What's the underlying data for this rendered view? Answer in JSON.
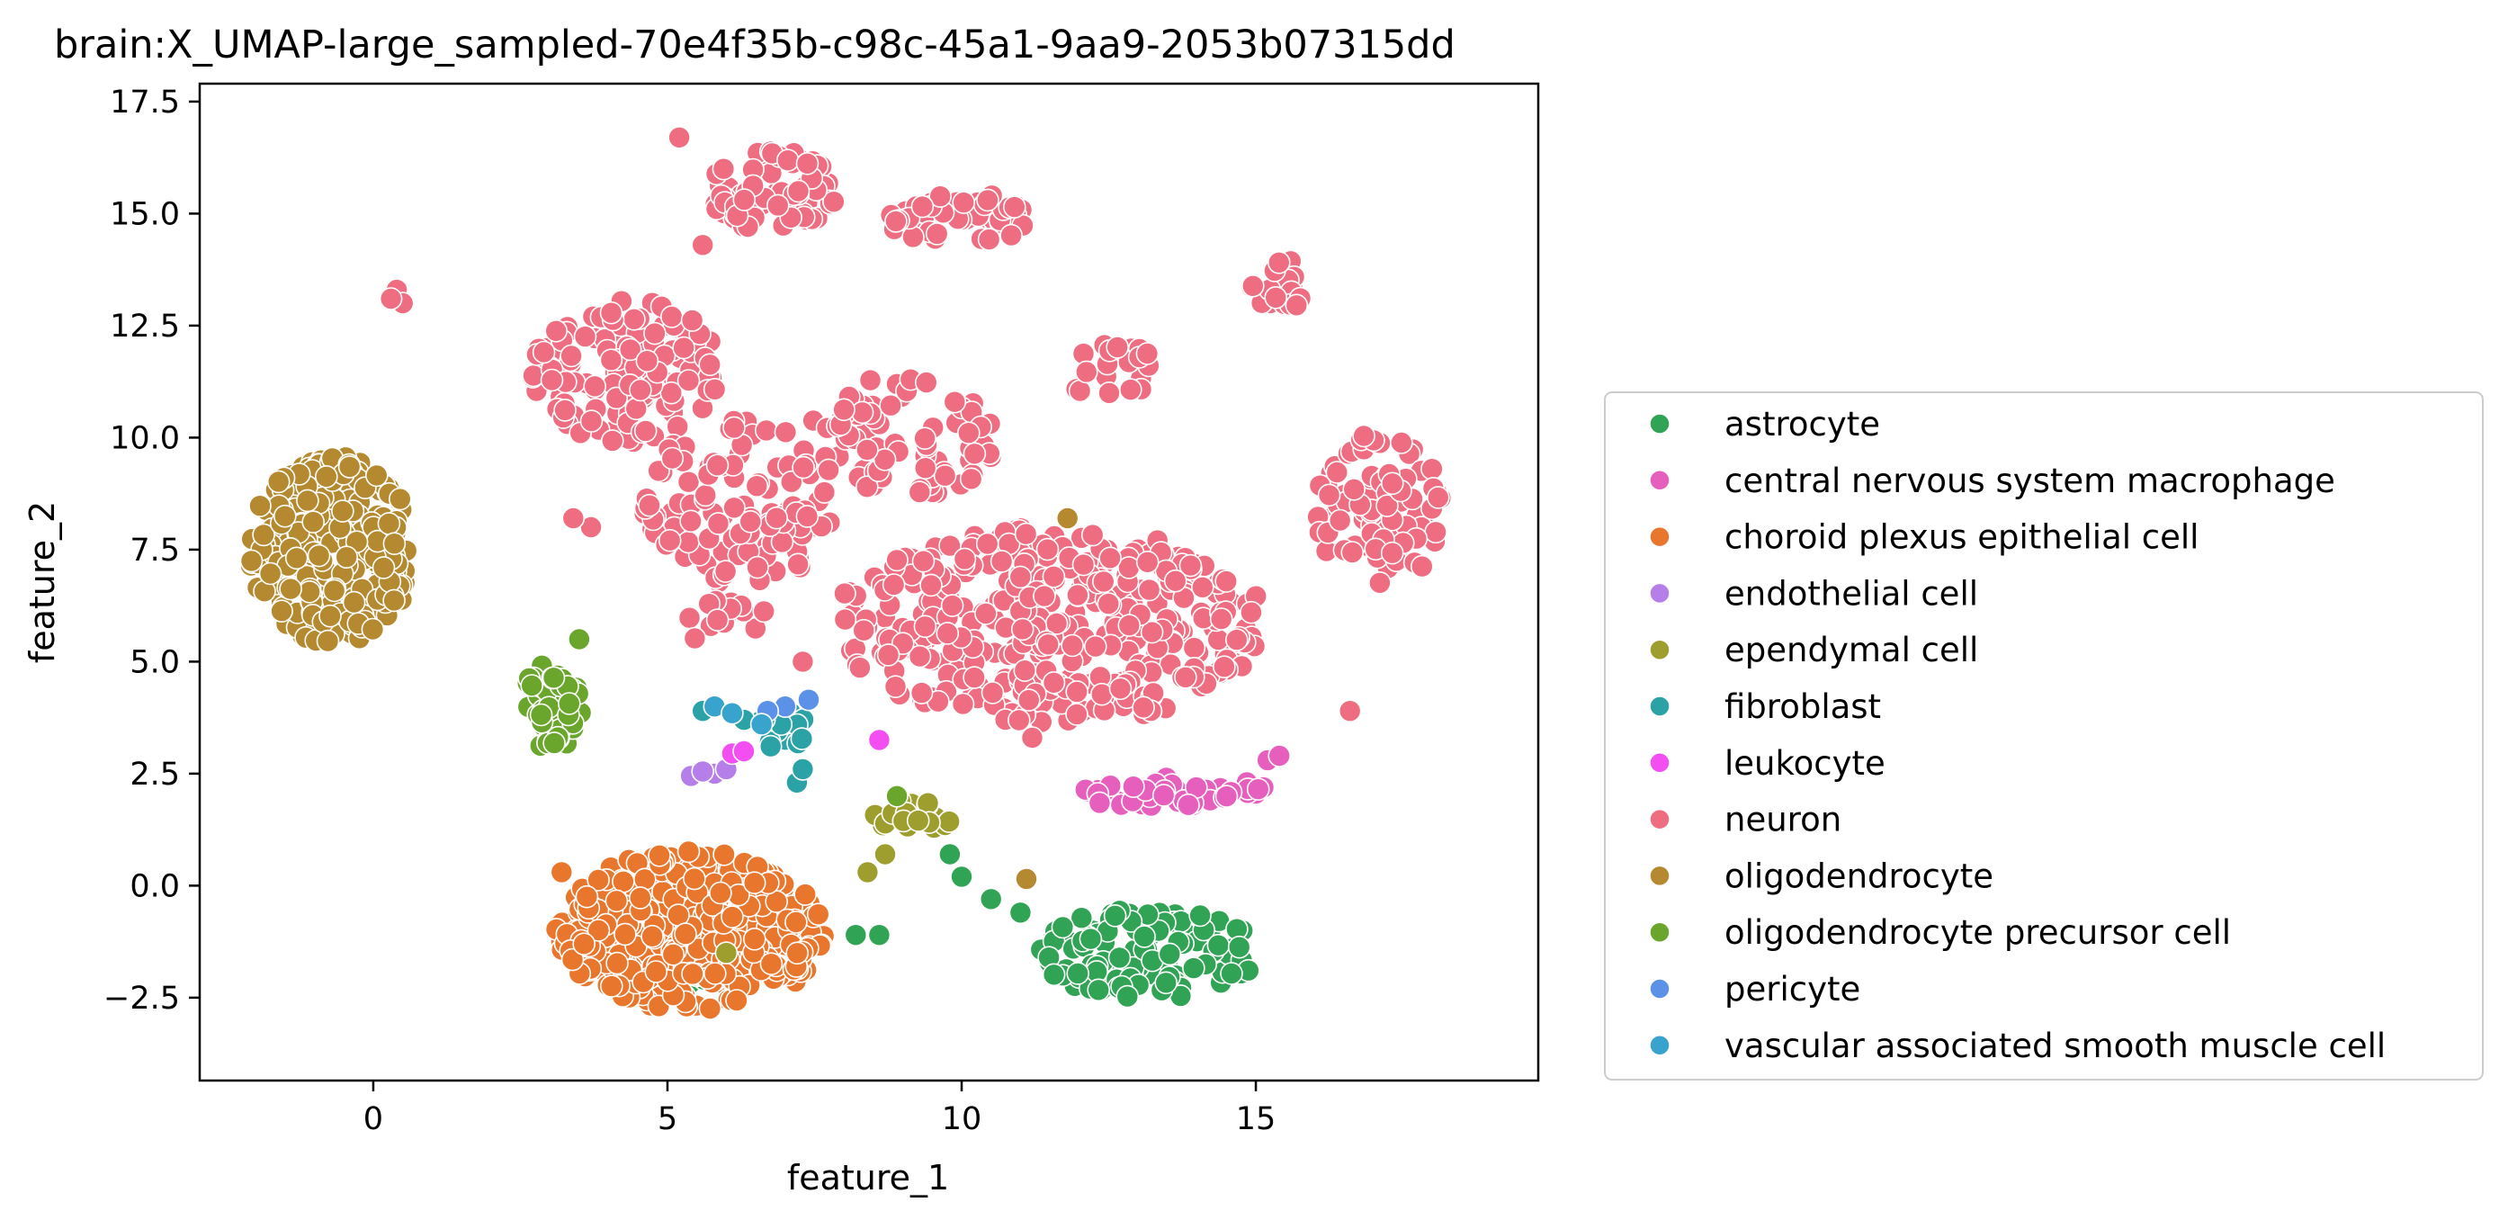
{
  "chart_data": {
    "type": "scatter",
    "title": "brain:X_UMAP-large_sampled-70e4f35b-c98c-45a1-9aa9-2053b07315dd",
    "xlabel": "feature_1",
    "ylabel": "feature_2",
    "xlim": [
      -2.95,
      19.8
    ],
    "ylim": [
      -4.35,
      17.9
    ],
    "xticks": [
      "0",
      "5",
      "10",
      "15"
    ],
    "xtick_values": [
      0,
      5,
      10,
      15
    ],
    "yticks": [
      "−2.5",
      "0.0",
      "2.5",
      "5.0",
      "7.5",
      "10.0",
      "12.5",
      "15.0",
      "17.5"
    ],
    "ytick_values": [
      -2.5,
      0,
      2.5,
      5,
      7.5,
      10,
      12.5,
      15,
      17.5
    ],
    "grid": false,
    "legend_position": "right",
    "series": [
      {
        "name": "astrocyte",
        "color": "#31a354",
        "regions": [
          {
            "cx": 13.2,
            "cy": -1.5,
            "rx": 1.9,
            "ry": 1.0,
            "n": 120
          },
          {
            "cx": 5.5,
            "cy": -1.6,
            "rx": 0.9,
            "ry": 0.6,
            "n": 12
          }
        ],
        "points": [
          [
            9.8,
            0.7
          ],
          [
            10.0,
            0.2
          ],
          [
            10.5,
            -0.3
          ],
          [
            11.0,
            -0.6
          ],
          [
            8.2,
            -1.1
          ],
          [
            8.6,
            -1.1
          ],
          [
            7.6,
            -1.3
          ]
        ]
      },
      {
        "name": "central nervous system macrophage",
        "color": "#e75fbd",
        "regions": [
          {
            "cx": 13.5,
            "cy": 2.1,
            "rx": 1.7,
            "ry": 0.35,
            "n": 45
          }
        ],
        "points": [
          [
            15.2,
            2.8
          ],
          [
            15.4,
            2.9
          ]
        ]
      },
      {
        "name": "choroid plexus epithelial cell",
        "color": "#e8762c",
        "regions": [
          {
            "cx": 5.4,
            "cy": -1.0,
            "rx": 2.3,
            "ry": 1.8,
            "n": 420
          }
        ],
        "points": [
          [
            3.2,
            0.3
          ]
        ]
      },
      {
        "name": "endothelial cell",
        "color": "#b57ee8",
        "regions": [],
        "points": [
          [
            5.4,
            2.45
          ],
          [
            5.8,
            2.5
          ],
          [
            6.0,
            2.6
          ],
          [
            5.6,
            2.55
          ]
        ]
      },
      {
        "name": "ependymal cell",
        "color": "#9e9e2f",
        "regions": [
          {
            "cx": 9.2,
            "cy": 1.6,
            "rx": 0.8,
            "ry": 0.35,
            "n": 20
          }
        ],
        "points": [
          [
            8.4,
            0.3
          ],
          [
            8.7,
            0.7
          ],
          [
            6.0,
            -1.5
          ]
        ]
      },
      {
        "name": "fibroblast",
        "color": "#2ba3a6",
        "regions": [
          {
            "cx": 6.9,
            "cy": 3.5,
            "rx": 0.45,
            "ry": 0.6,
            "n": 18
          }
        ],
        "points": [
          [
            5.6,
            3.9
          ],
          [
            6.3,
            3.7
          ],
          [
            7.2,
            2.3
          ],
          [
            7.3,
            2.6
          ]
        ]
      },
      {
        "name": "leukocyte",
        "color": "#f24ef2",
        "regions": [],
        "points": [
          [
            6.1,
            2.95
          ],
          [
            6.3,
            3.0
          ],
          [
            8.6,
            3.25
          ]
        ]
      },
      {
        "name": "neuron",
        "color": "#ee6d80",
        "regions": [
          {
            "cx": 11.5,
            "cy": 5.8,
            "rx": 3.7,
            "ry": 2.2,
            "n": 380
          },
          {
            "cx": 4.3,
            "cy": 11.5,
            "rx": 1.6,
            "ry": 1.6,
            "n": 130
          },
          {
            "cx": 6.2,
            "cy": 8.5,
            "rx": 1.6,
            "ry": 1.9,
            "n": 110
          },
          {
            "cx": 9.0,
            "cy": 10.0,
            "rx": 1.6,
            "ry": 1.4,
            "n": 80
          },
          {
            "cx": 6.8,
            "cy": 15.5,
            "rx": 1.1,
            "ry": 0.9,
            "n": 70
          },
          {
            "cx": 10.0,
            "cy": 14.9,
            "rx": 1.3,
            "ry": 0.55,
            "n": 55
          },
          {
            "cx": 17.1,
            "cy": 8.4,
            "rx": 1.1,
            "ry": 1.7,
            "n": 85
          },
          {
            "cx": 15.4,
            "cy": 13.4,
            "rx": 0.5,
            "ry": 0.6,
            "n": 18
          },
          {
            "cx": 12.6,
            "cy": 11.4,
            "rx": 0.8,
            "ry": 0.7,
            "n": 22
          },
          {
            "cx": 6.0,
            "cy": 5.9,
            "rx": 0.7,
            "ry": 0.7,
            "n": 14
          }
        ],
        "points": [
          [
            0.4,
            13.3
          ],
          [
            0.5,
            13.0
          ],
          [
            0.3,
            13.1
          ],
          [
            5.2,
            16.7
          ],
          [
            5.6,
            14.3
          ],
          [
            3.7,
            8.0
          ],
          [
            3.4,
            8.2
          ],
          [
            16.6,
            3.9
          ],
          [
            7.3,
            5.0
          ],
          [
            11.2,
            3.3
          ]
        ]
      },
      {
        "name": "oligodendrocyte",
        "color": "#b5892f",
        "regions": [
          {
            "cx": -0.7,
            "cy": 7.5,
            "rx": 1.4,
            "ry": 2.1,
            "n": 260
          }
        ],
        "points": [
          [
            11.8,
            8.2
          ],
          [
            11.1,
            0.15
          ]
        ]
      },
      {
        "name": "oligodendrocyte precursor cell",
        "color": "#6aa62c",
        "regions": [
          {
            "cx": 3.0,
            "cy": 4.0,
            "rx": 0.55,
            "ry": 1.0,
            "n": 45
          }
        ],
        "points": [
          [
            3.5,
            5.5
          ],
          [
            8.9,
            2.0
          ]
        ]
      },
      {
        "name": "pericyte",
        "color": "#5b91e6",
        "regions": [],
        "points": [
          [
            7.0,
            4.0
          ],
          [
            7.4,
            4.15
          ],
          [
            6.7,
            3.9
          ]
        ]
      },
      {
        "name": "vascular associated smooth muscle cell",
        "color": "#38a3cc",
        "regions": [],
        "points": [
          [
            5.8,
            4.0
          ],
          [
            6.1,
            3.85
          ],
          [
            6.6,
            3.6
          ]
        ]
      }
    ]
  }
}
